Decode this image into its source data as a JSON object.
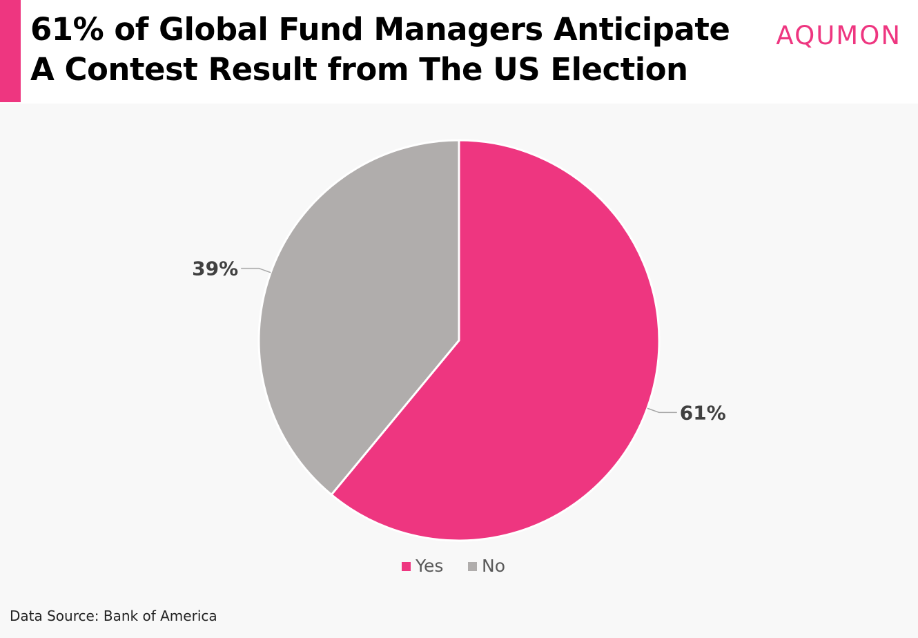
{
  "header": {
    "title": "61% of Global Fund Managers Anticipate A Contest Result from The US Election",
    "logo_text": "AQUMON"
  },
  "colors": {
    "accent": "#ee3680",
    "secondary": "#b0adac",
    "label": "#404040"
  },
  "chart_data": {
    "type": "pie",
    "title": "61% of Global Fund Managers Anticipate A Contest Result from The US Election",
    "categories": [
      "Yes",
      "No"
    ],
    "values": [
      61,
      39
    ],
    "value_labels": [
      "61%",
      "39%"
    ],
    "colors": [
      "#ee3680",
      "#b0adac"
    ],
    "start_angle_deg": 0,
    "direction": "clockwise",
    "legend_position": "bottom"
  },
  "footer": {
    "source": "Data Source: Bank of America"
  }
}
